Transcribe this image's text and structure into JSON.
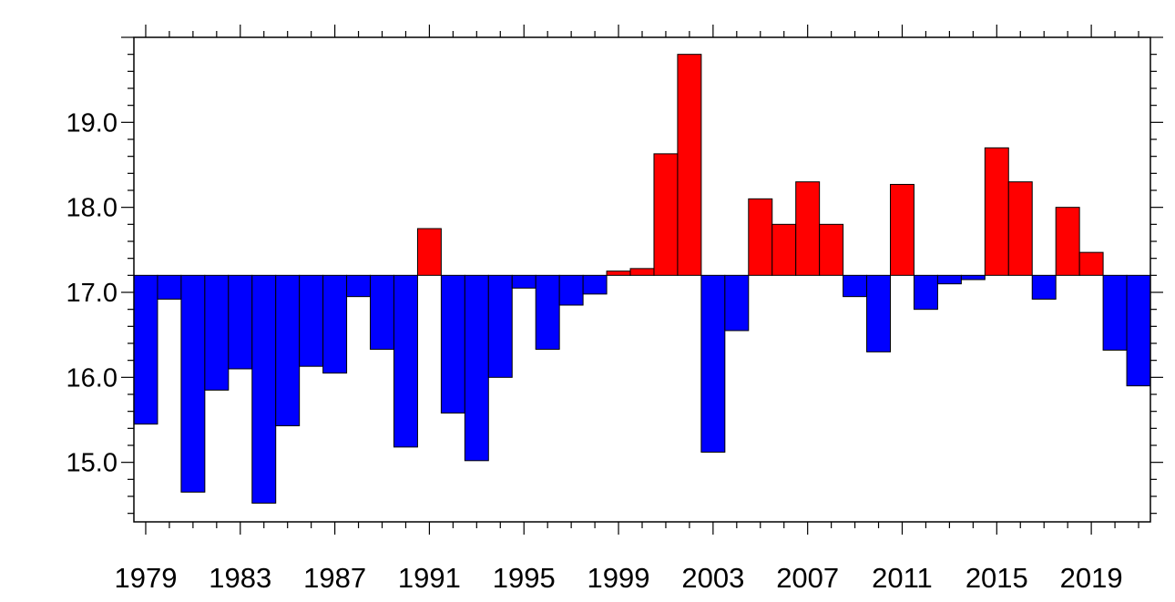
{
  "chart_data": {
    "type": "bar",
    "title": "",
    "xlabel": "",
    "ylabel": "",
    "baseline": 17.2,
    "ylim": [
      14.3,
      20.0
    ],
    "xlim": [
      1978.5,
      2021.5
    ],
    "years": [
      1979,
      1980,
      1981,
      1982,
      1983,
      1984,
      1985,
      1986,
      1987,
      1988,
      1989,
      1990,
      1991,
      1992,
      1993,
      1994,
      1995,
      1996,
      1997,
      1998,
      1999,
      2000,
      2001,
      2002,
      2003,
      2004,
      2005,
      2006,
      2007,
      2008,
      2009,
      2010,
      2011,
      2012,
      2013,
      2014,
      2015,
      2016,
      2017,
      2018,
      2019,
      2020,
      2021
    ],
    "values": [
      15.45,
      16.92,
      14.65,
      15.85,
      16.1,
      14.52,
      15.43,
      16.13,
      16.05,
      16.95,
      16.33,
      15.18,
      17.75,
      15.58,
      15.02,
      16.0,
      17.05,
      16.33,
      16.85,
      16.98,
      17.25,
      17.28,
      18.63,
      19.8,
      15.12,
      16.55,
      18.1,
      17.8,
      18.3,
      17.8,
      16.95,
      16.3,
      18.27,
      16.8,
      17.1,
      17.15,
      18.7,
      18.3,
      16.92,
      18.0,
      17.47,
      16.32,
      15.9
    ],
    "above_color": "#ff0000",
    "below_color": "#0000ff",
    "y_ticks": [
      15.0,
      16.0,
      17.0,
      18.0,
      19.0
    ],
    "y_tick_labels": [
      "15.0",
      "16.0",
      "17.0",
      "18.0",
      "19.0"
    ],
    "x_ticks": [
      1979,
      1983,
      1987,
      1991,
      1995,
      1999,
      2003,
      2007,
      2011,
      2015,
      2019
    ],
    "x_tick_labels": [
      "1979",
      "1983",
      "1987",
      "1991",
      "1995",
      "1999",
      "2003",
      "2007",
      "2011",
      "2015",
      "2019"
    ],
    "grid": false,
    "legend": "none"
  }
}
